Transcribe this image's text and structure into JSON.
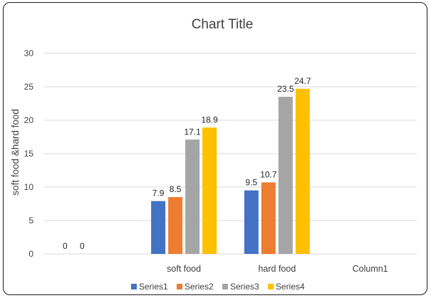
{
  "chart_data": {
    "type": "bar",
    "title": "Chart Title",
    "xlabel": "",
    "ylabel": "soft food &hard food",
    "ylim": [
      0,
      30
    ],
    "yticks": [
      0,
      5,
      10,
      15,
      20,
      25,
      30
    ],
    "grid": true,
    "legend_position": "bottom",
    "categories": [
      "",
      "soft food",
      "hard food",
      "Column1"
    ],
    "series": [
      {
        "name": "Series1",
        "color": "#4472C4",
        "values": [
          0,
          7.9,
          9.5,
          null
        ]
      },
      {
        "name": "Series2",
        "color": "#ED7D31",
        "values": [
          0,
          8.5,
          10.7,
          null
        ]
      },
      {
        "name": "Series3",
        "color": "#A5A5A5",
        "values": [
          null,
          17.1,
          23.5,
          null
        ]
      },
      {
        "name": "Series4",
        "color": "#FFC000",
        "values": [
          null,
          18.9,
          24.7,
          null
        ]
      }
    ]
  }
}
